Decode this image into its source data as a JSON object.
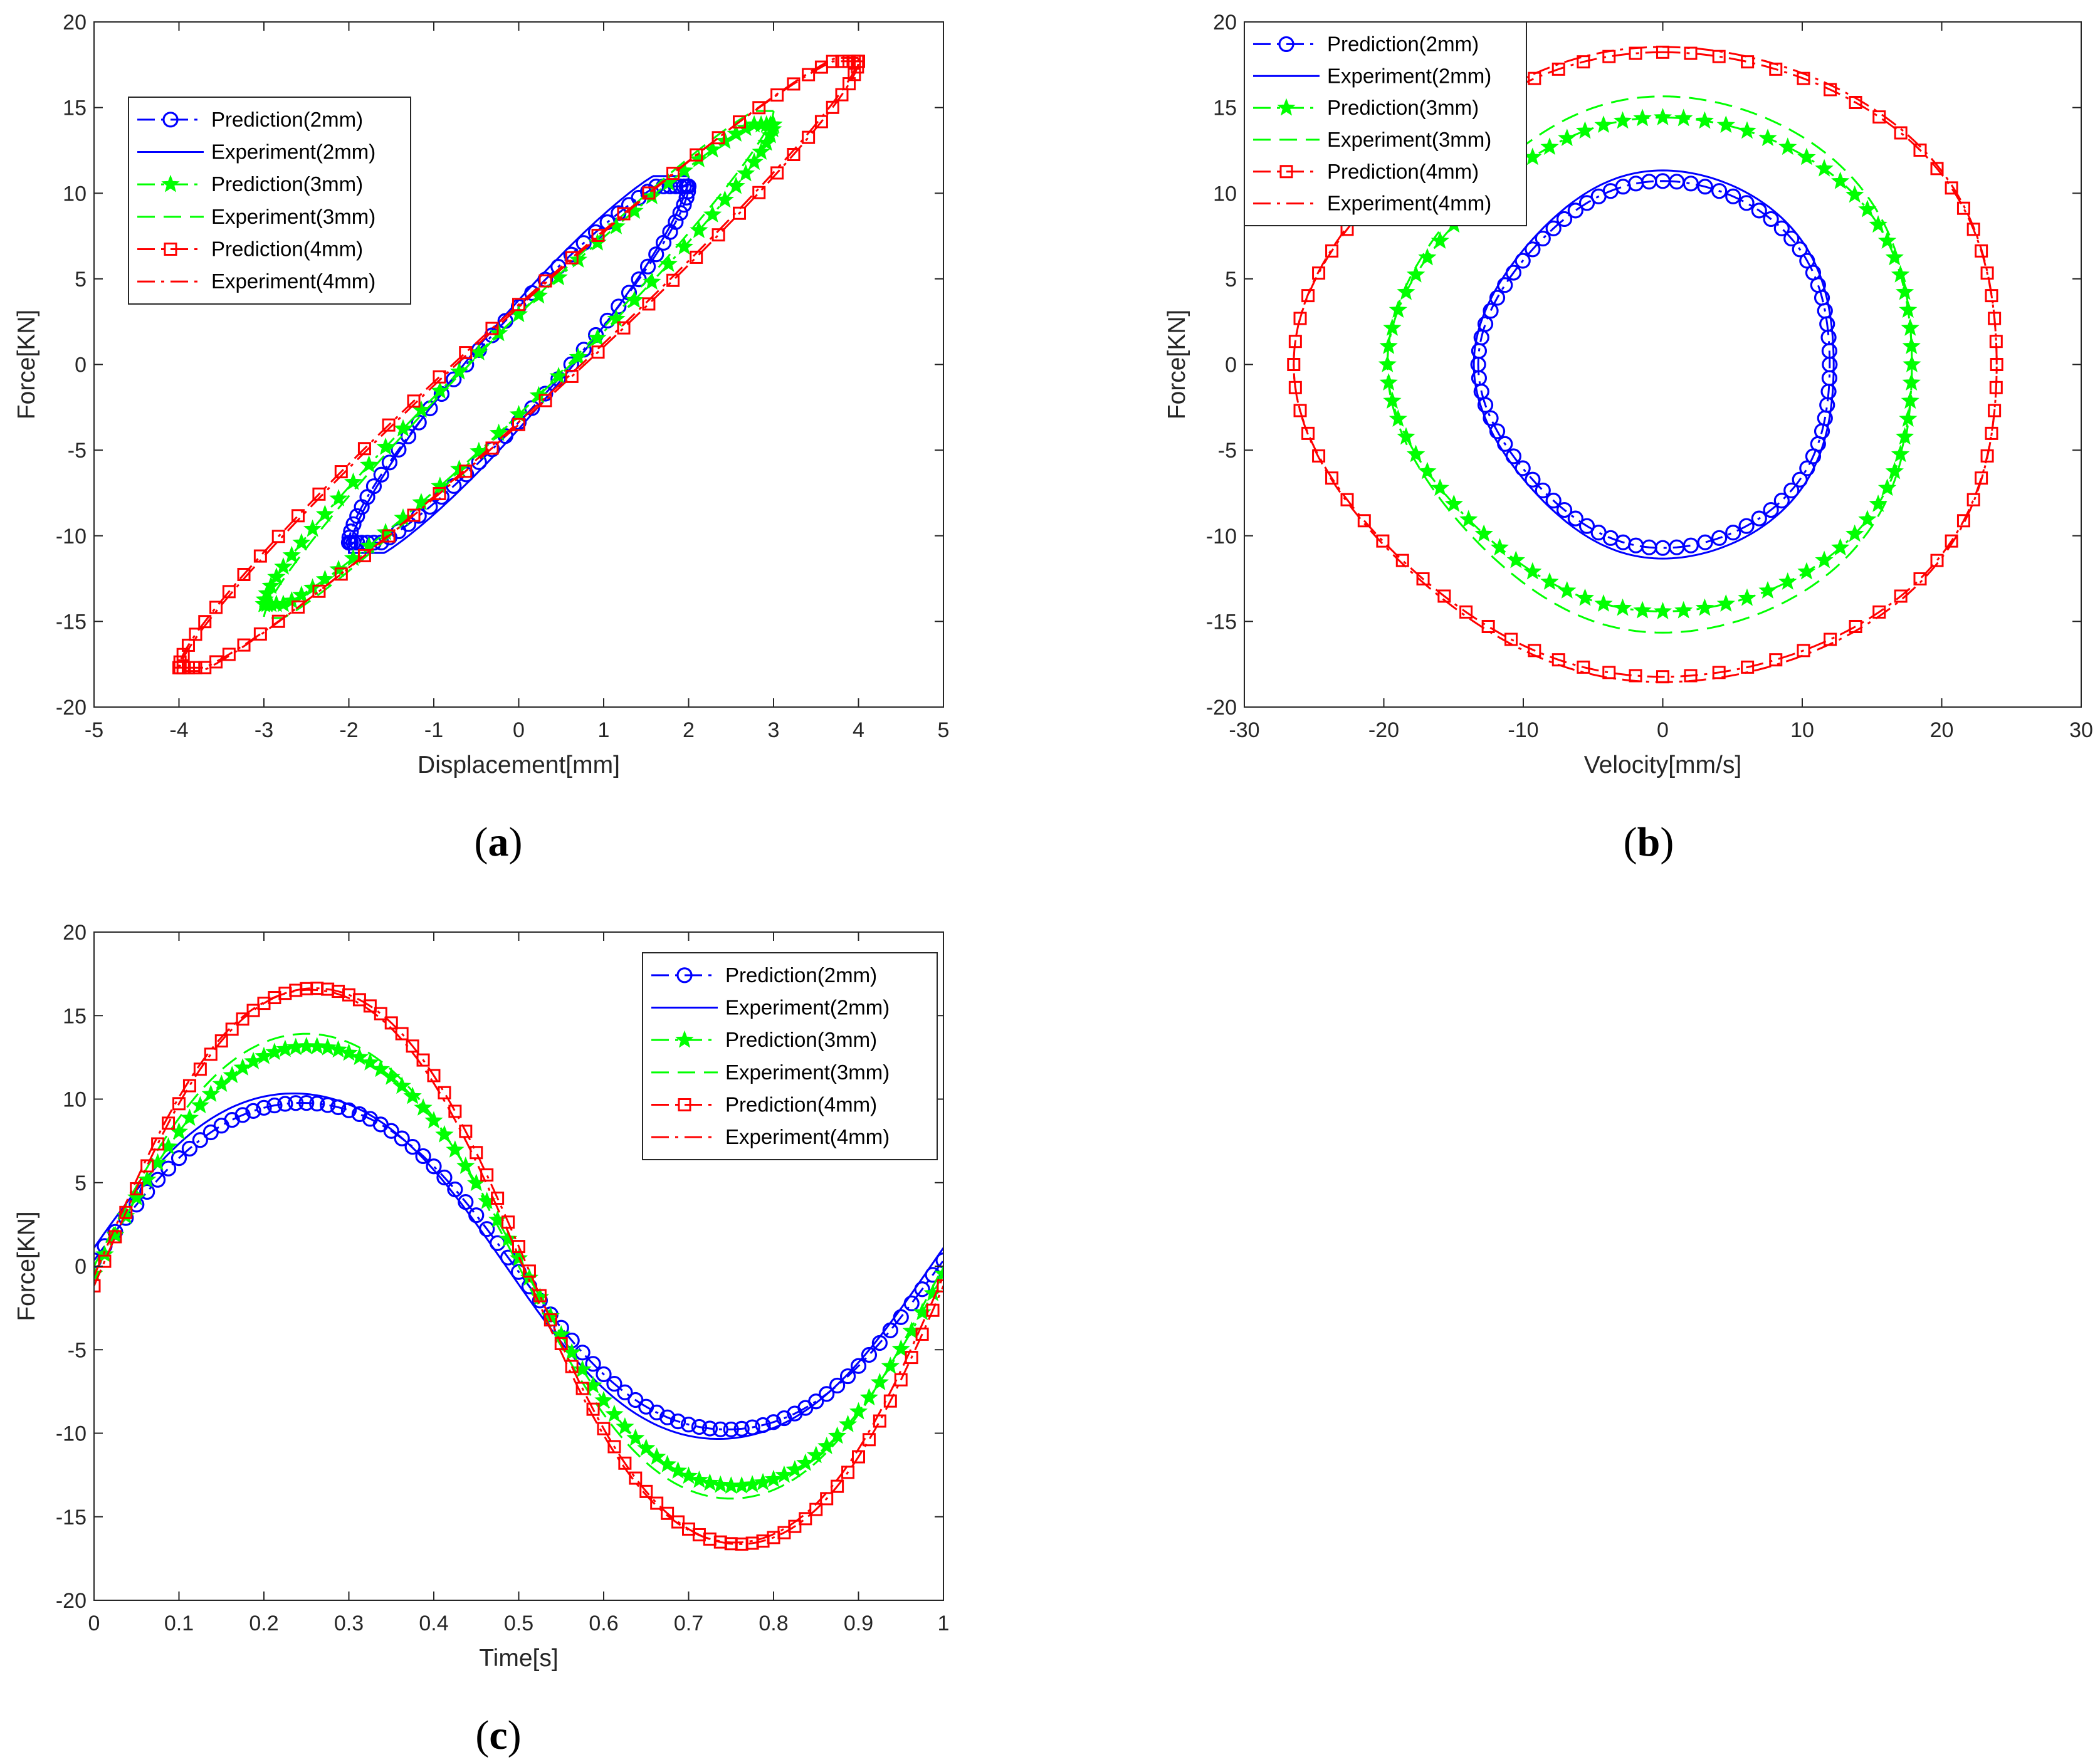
{
  "colors": {
    "blue": "#0000ff",
    "green": "#00ff00",
    "red": "#ff0000",
    "axis": "#262626"
  },
  "chart_data": [
    {
      "panel": "a",
      "caption": "(a)",
      "type": "line",
      "xlabel": "Displacement[mm]",
      "ylabel": "Force[KN]",
      "xlim": [
        -5,
        5
      ],
      "ylim": [
        -20,
        20
      ],
      "xticks": [
        -5,
        -4,
        -3,
        -2,
        -1,
        0,
        1,
        2,
        3,
        4,
        5
      ],
      "yticks": [
        -20,
        -15,
        -10,
        -5,
        0,
        5,
        10,
        15,
        20
      ],
      "legend_position": "top-left",
      "series": [
        {
          "name": "Prediction(2mm)",
          "color": "#0000ff",
          "line": "dashdot",
          "marker": "circle",
          "loop": "disp",
          "amp": 2,
          "fmax": 10.4,
          "xscale": 1.0,
          "hyst": 0.9,
          "phase": 0
        },
        {
          "name": "Experiment(2mm)",
          "color": "#0000ff",
          "line": "solid",
          "marker": "none",
          "loop": "disp",
          "amp": 2,
          "fmax": 11.0,
          "xscale": 1.0,
          "hyst": 0.95,
          "phase": 0
        },
        {
          "name": "Prediction(3mm)",
          "color": "#00ff00",
          "line": "dashdot",
          "marker": "star",
          "loop": "disp",
          "amp": 3,
          "fmax": 14.0,
          "xscale": 1.0,
          "hyst": 0.58,
          "phase": 0
        },
        {
          "name": "Experiment(3mm)",
          "color": "#00ff00",
          "line": "dashed",
          "marker": "none",
          "loop": "disp",
          "amp": 3,
          "fmax": 14.8,
          "xscale": 1.0,
          "hyst": 0.55,
          "phase": 0
        },
        {
          "name": "Prediction(4mm)",
          "color": "#ff0000",
          "line": "dashdot",
          "marker": "square",
          "loop": "disp",
          "amp": 4,
          "fmax": 17.7,
          "xscale": 1.0,
          "hyst": 0.55,
          "phase": 0
        },
        {
          "name": "Experiment(4mm)",
          "color": "#ff0000",
          "line": "dashdot",
          "marker": "none",
          "loop": "disp",
          "amp": 4,
          "fmax": 17.9,
          "xscale": 1.0,
          "hyst": 0.52,
          "phase": 0
        }
      ]
    },
    {
      "panel": "b",
      "caption": "(b)",
      "type": "line",
      "xlabel": "Velocity[mm/s]",
      "ylabel": "Force[KN]",
      "xlim": [
        -30,
        30
      ],
      "ylim": [
        -20,
        20
      ],
      "xticks": [
        -30,
        -20,
        -10,
        0,
        10,
        20,
        30
      ],
      "yticks": [
        -20,
        -15,
        -10,
        -5,
        0,
        5,
        10,
        15,
        20
      ],
      "legend_position": "top-left",
      "series": [
        {
          "name": "Prediction(2mm)",
          "color": "#0000ff",
          "line": "dashdot",
          "marker": "circle",
          "loop": "vel",
          "amp": 12.6,
          "fmax": 10.4,
          "xscale": 1.0,
          "hyst": 0,
          "phase": 0
        },
        {
          "name": "Experiment(2mm)",
          "color": "#0000ff",
          "line": "solid",
          "marker": "none",
          "loop": "vel",
          "amp": 12.9,
          "fmax": 11.0,
          "xscale": 1.0,
          "hyst": 0,
          "phase": 0
        },
        {
          "name": "Prediction(3mm)",
          "color": "#00ff00",
          "line": "dashdot",
          "marker": "star",
          "loop": "vel",
          "amp": 18.8,
          "fmax": 14.0,
          "xscale": 1.0,
          "hyst": 0,
          "phase": 0
        },
        {
          "name": "Experiment(3mm)",
          "color": "#00ff00",
          "line": "dashed",
          "marker": "none",
          "loop": "vel",
          "amp": 18.8,
          "fmax": 15.2,
          "xscale": 1.0,
          "hyst": 0,
          "phase": 0
        },
        {
          "name": "Prediction(4mm)",
          "color": "#ff0000",
          "line": "dashdot",
          "marker": "square",
          "loop": "vel",
          "amp": 25.2,
          "fmax": 17.7,
          "xscale": 1.0,
          "hyst": 0,
          "phase": 0
        },
        {
          "name": "Experiment(4mm)",
          "color": "#ff0000",
          "line": "dashdot",
          "marker": "none",
          "loop": "vel",
          "amp": 25.2,
          "fmax": 18.0,
          "xscale": 1.0,
          "hyst": 0,
          "phase": 0
        }
      ]
    },
    {
      "panel": "c",
      "caption": "(c)",
      "type": "line",
      "xlabel": "Time[s]",
      "ylabel": "Force[KN]",
      "xlim": [
        0,
        1
      ],
      "ylim": [
        -20,
        20
      ],
      "xticks": [
        0,
        0.1,
        0.2,
        0.3,
        0.4,
        0.5,
        0.6,
        0.7,
        0.8,
        0.9,
        1
      ],
      "yticks": [
        -20,
        -15,
        -10,
        -5,
        0,
        5,
        10,
        15,
        20
      ],
      "legend_position": "top-right",
      "series": [
        {
          "name": "Prediction(2mm)",
          "color": "#0000ff",
          "line": "dashdot",
          "marker": "circle",
          "loop": "time",
          "amp": 0,
          "fmax": 10.4,
          "xscale": 1.0,
          "hyst": 0,
          "phase": 0.245
        },
        {
          "name": "Experiment(2mm)",
          "color": "#0000ff",
          "line": "solid",
          "marker": "none",
          "loop": "time",
          "amp": 0,
          "fmax": 11.0,
          "xscale": 1.0,
          "hyst": 0,
          "phase": 0.235
        },
        {
          "name": "Prediction(3mm)",
          "color": "#00ff00",
          "line": "dashdot",
          "marker": "star",
          "loop": "time",
          "amp": 0,
          "fmax": 14.0,
          "xscale": 1.0,
          "hyst": 0,
          "phase": 0.255
        },
        {
          "name": "Experiment(3mm)",
          "color": "#00ff00",
          "line": "dashed",
          "marker": "none",
          "loop": "time",
          "amp": 0,
          "fmax": 14.8,
          "xscale": 1.0,
          "hyst": 0,
          "phase": 0.25
        },
        {
          "name": "Prediction(4mm)",
          "color": "#ff0000",
          "line": "dashdot",
          "marker": "square",
          "loop": "time",
          "amp": 0,
          "fmax": 17.7,
          "xscale": 1.0,
          "hyst": 0,
          "phase": 0.26
        },
        {
          "name": "Experiment(4mm)",
          "color": "#ff0000",
          "line": "dashdot",
          "marker": "none",
          "loop": "time",
          "amp": 0,
          "fmax": 17.6,
          "xscale": 1.0,
          "hyst": 0,
          "phase": 0.255
        }
      ]
    }
  ]
}
